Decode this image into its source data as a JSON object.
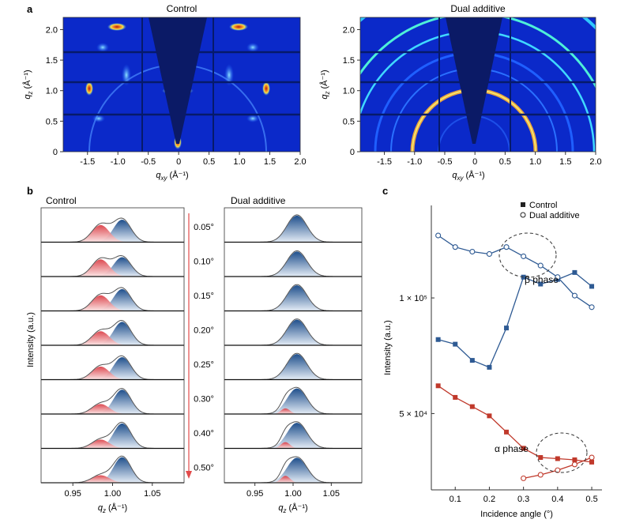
{
  "panel_a": {
    "label": "a",
    "maps": [
      {
        "title": "Control"
      },
      {
        "title": "Dual additive"
      }
    ],
    "chart_data": {
      "type": "heatmap",
      "xlabel": "q_xy (Å⁻¹)",
      "ylabel": "q_z (Å⁻¹)",
      "xlim": [
        -1.9,
        2.0
      ],
      "ylim": [
        0,
        2.2
      ],
      "xticks": [
        "-1.5",
        "-1.0",
        "-0.5",
        "0",
        "0.5",
        "1.0",
        "1.5",
        "2.0"
      ],
      "xtick_values": [
        -1.5,
        -1.0,
        -0.5,
        0,
        0.5,
        1.0,
        1.5,
        2.0
      ],
      "yticks": [
        "0",
        "0.5",
        "1.0",
        "1.5",
        "2.0"
      ],
      "ytick_values": [
        0,
        0.5,
        1.0,
        1.5,
        2.0
      ]
    }
  },
  "panel_b": {
    "label": "b",
    "left_title": "Control",
    "right_title": "Dual additive",
    "ylabel": "Intensity (a.u.)",
    "chart_data": {
      "type": "area",
      "xlabel": "q_z (Å⁻¹)",
      "xlim": [
        0.91,
        1.09
      ],
      "xticks": [
        "0.95",
        "1.00",
        "1.05"
      ],
      "xtick_values": [
        0.95,
        1.0,
        1.05
      ],
      "angles": [
        "0.05°",
        "0.10°",
        "0.15°",
        "0.20°",
        "0.25°",
        "0.30°",
        "0.40°",
        "0.50°"
      ],
      "control_alpha_amp": [
        0.55,
        0.55,
        0.5,
        0.45,
        0.42,
        0.32,
        0.28,
        0.24
      ],
      "control_beta_amp": [
        0.72,
        0.62,
        0.7,
        0.75,
        0.72,
        0.78,
        0.8,
        0.82
      ],
      "dual_alpha_amp": [
        0,
        0,
        0,
        0,
        0,
        0.18,
        0.2,
        0.22
      ],
      "dual_beta_amp": [
        0.85,
        0.8,
        0.82,
        0.82,
        0.82,
        0.82,
        0.82,
        0.8
      ]
    }
  },
  "panel_c": {
    "label": "c",
    "annotations": {
      "beta": "β phase",
      "alpha": "α phase"
    },
    "chart_data": {
      "type": "line",
      "xlabel": "Incidence angle (°)",
      "ylabel": "Intensity (a.u.)",
      "xlim": [
        0.03,
        0.53
      ],
      "ylim": [
        17000,
        140000
      ],
      "xticks": [
        "0.1",
        "0.2",
        "0.3",
        "0.4",
        "0.5"
      ],
      "xtick_values": [
        0.1,
        0.2,
        0.3,
        0.4,
        0.5
      ],
      "ytick_labels": [
        "5 × 10⁴",
        "1 × 10⁵"
      ],
      "ytick_values": [
        50000,
        100000
      ],
      "legend": [
        "Control",
        "Dual additive"
      ],
      "series": [
        {
          "name": "β phase – Control",
          "marker": "square",
          "color": "#2e5a93",
          "x": [
            0.05,
            0.1,
            0.15,
            0.2,
            0.25,
            0.3,
            0.35,
            0.4,
            0.45,
            0.5
          ],
          "y": [
            82000,
            80000,
            73000,
            70000,
            87000,
            109000,
            106000,
            108000,
            111000,
            105000
          ]
        },
        {
          "name": "β phase – Dual additive",
          "marker": "circle",
          "color": "#2e5a93",
          "x": [
            0.05,
            0.1,
            0.15,
            0.2,
            0.25,
            0.3,
            0.35,
            0.4,
            0.45,
            0.5
          ],
          "y": [
            127000,
            122000,
            120000,
            119000,
            122000,
            118000,
            114000,
            109000,
            101000,
            96000
          ]
        },
        {
          "name": "α phase – Control",
          "marker": "square",
          "color": "#c0392b",
          "x": [
            0.05,
            0.1,
            0.15,
            0.2,
            0.25,
            0.3,
            0.35,
            0.4,
            0.45,
            0.5
          ],
          "y": [
            62000,
            57000,
            53000,
            49000,
            42000,
            35000,
            31000,
            30500,
            30000,
            29000
          ]
        },
        {
          "name": "α phase – Dual additive",
          "marker": "circle",
          "color": "#c0392b",
          "x": [
            0.3,
            0.35,
            0.4,
            0.45,
            0.5
          ],
          "y": [
            22000,
            23500,
            25500,
            28000,
            31000
          ]
        }
      ]
    }
  }
}
